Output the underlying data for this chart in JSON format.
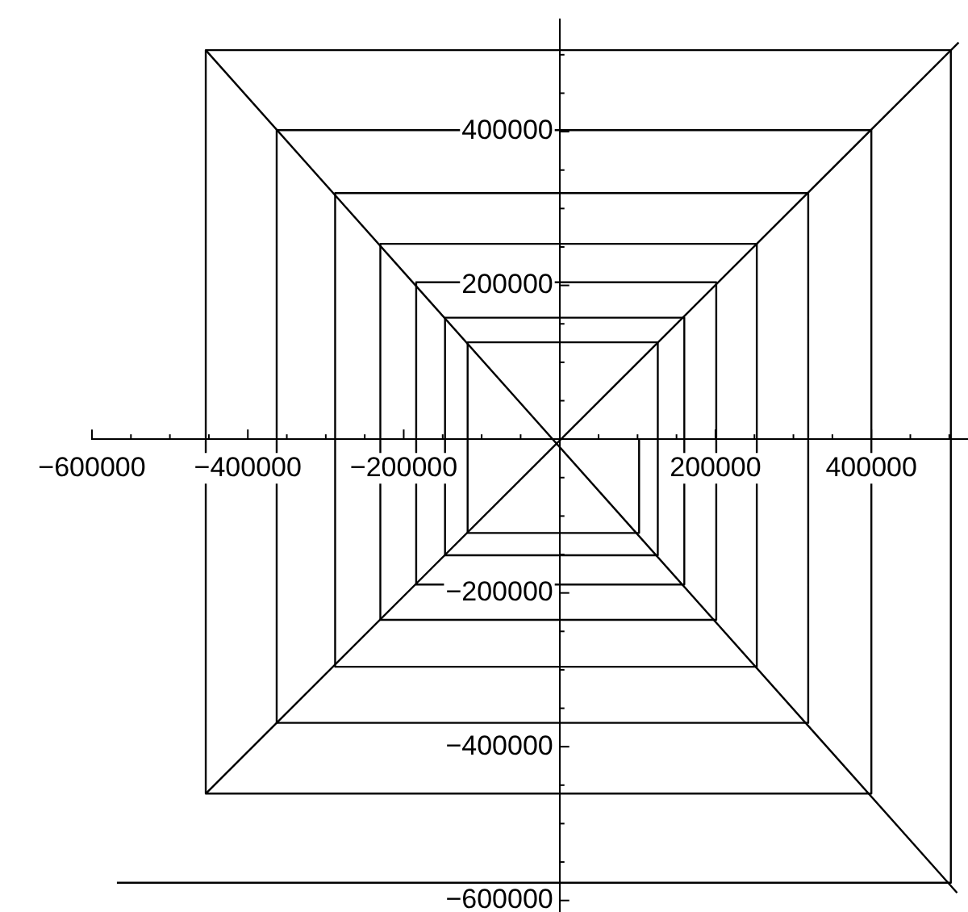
{
  "chart_data": {
    "type": "line",
    "xlim": [
      -600000,
      524000
    ],
    "ylim": [
      -615000,
      546000
    ],
    "xticks": [
      {
        "value": -600000,
        "label": "−600000"
      },
      {
        "value": -550000,
        "label": null
      },
      {
        "value": -500000,
        "label": null
      },
      {
        "value": -450000,
        "label": null
      },
      {
        "value": -400000,
        "label": "−400000"
      },
      {
        "value": -350000,
        "label": null
      },
      {
        "value": -300000,
        "label": null
      },
      {
        "value": -250000,
        "label": null
      },
      {
        "value": -200000,
        "label": "−200000"
      },
      {
        "value": -150000,
        "label": null
      },
      {
        "value": -100000,
        "label": null
      },
      {
        "value": -50000,
        "label": null
      },
      {
        "value": 50000,
        "label": null
      },
      {
        "value": 100000,
        "label": null
      },
      {
        "value": 150000,
        "label": null
      },
      {
        "value": 200000,
        "label": "200000"
      },
      {
        "value": 250000,
        "label": null
      },
      {
        "value": 300000,
        "label": null
      },
      {
        "value": 350000,
        "label": null
      },
      {
        "value": 400000,
        "label": "400000"
      },
      {
        "value": 450000,
        "label": null
      },
      {
        "value": 500000,
        "label": null
      }
    ],
    "yticks": [
      {
        "value": -600000,
        "label": "−600000"
      },
      {
        "value": -550000,
        "label": null
      },
      {
        "value": -500000,
        "label": null
      },
      {
        "value": -450000,
        "label": null
      },
      {
        "value": -400000,
        "label": "−400000"
      },
      {
        "value": -350000,
        "label": null
      },
      {
        "value": -300000,
        "label": null
      },
      {
        "value": -250000,
        "label": null
      },
      {
        "value": -200000,
        "label": "−200000"
      },
      {
        "value": -150000,
        "label": null
      },
      {
        "value": -100000,
        "label": null
      },
      {
        "value": -50000,
        "label": null
      },
      {
        "value": 50000,
        "label": null
      },
      {
        "value": 100000,
        "label": null
      },
      {
        "value": 150000,
        "label": null
      },
      {
        "value": 200000,
        "label": "200000"
      },
      {
        "value": 250000,
        "label": null
      },
      {
        "value": 300000,
        "label": null
      },
      {
        "value": 350000,
        "label": null
      },
      {
        "value": 400000,
        "label": "400000"
      },
      {
        "value": 450000,
        "label": null
      },
      {
        "value": 500000,
        "label": null
      }
    ],
    "grid": false,
    "legend": false,
    "marker": "none",
    "line_style": "solid",
    "series": [
      {
        "color": "#000000",
        "x": [
          -568000,
          502000,
          502000,
          -454000,
          -454000,
          400000,
          400000,
          -363000,
          -363000,
          319000,
          319000,
          -288000,
          -288000,
          253000,
          253000,
          -230000,
          -230000,
          201000,
          201000,
          -184000,
          -184000,
          160000,
          160000,
          -147000,
          -147000,
          126000,
          126000,
          -118000,
          -118000,
          102000,
          102000
        ],
        "values": [
          -577000,
          -577000,
          506000,
          506000,
          -461000,
          -461000,
          402000,
          402000,
          -369000,
          -369000,
          320000,
          320000,
          -296000,
          -296000,
          254000,
          254000,
          -235000,
          -235000,
          204000,
          204000,
          -189000,
          -189000,
          158000,
          158000,
          -151000,
          -151000,
          126000,
          126000,
          -122000,
          -122000,
          0
        ]
      },
      {
        "color": "#000000",
        "x": [
          -454000,
          510000
        ],
        "values": [
          506000,
          -590000
        ]
      },
      {
        "color": "#000000",
        "x": [
          -454000,
          512000
        ],
        "values": [
          -461000,
          516000
        ]
      }
    ]
  }
}
